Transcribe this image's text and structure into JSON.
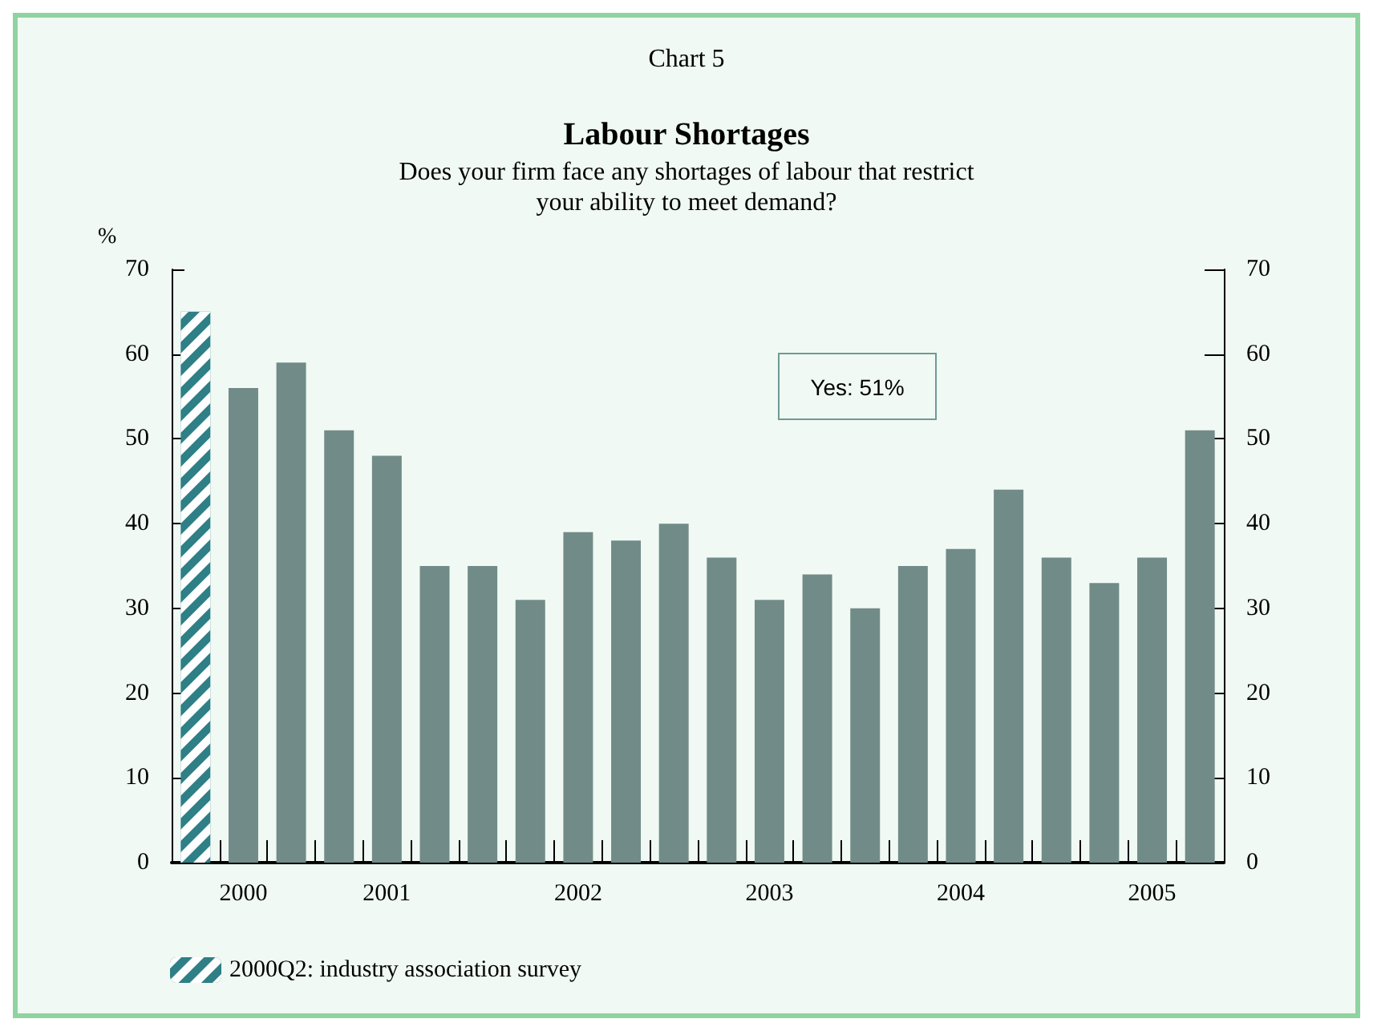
{
  "chart_data": {
    "type": "bar",
    "title": "Labour Shortages",
    "subtitle": "Does your firm face any shortages of labour that restrict\nyour ability to meet demand?",
    "ylabel": "%",
    "annotations": [
      "Chart 5",
      "Yes: 51%"
    ],
    "categories": [
      null,
      "2000",
      null,
      null,
      "2001",
      null,
      null,
      null,
      "2002",
      null,
      null,
      null,
      "2003",
      null,
      null,
      null,
      "2004",
      null,
      null,
      null,
      "2005",
      null
    ],
    "series": [
      {
        "name": "2000Q2: industry association survey",
        "color": "#2e7f86",
        "values": [
          65,
          null,
          null,
          null,
          null,
          null,
          null,
          null,
          null,
          null,
          null,
          null,
          null,
          null,
          null,
          null,
          null,
          null,
          null,
          null,
          null,
          null
        ]
      },
      {
        "color": "#718b88",
        "values": [
          null,
          56,
          59,
          51,
          48,
          35,
          35,
          31,
          39,
          38,
          40,
          36,
          31,
          34,
          30,
          35,
          37,
          44,
          36,
          33,
          36,
          51
        ]
      }
    ],
    "ylim": [
      0,
      70
    ],
    "yticks": [
      0,
      10,
      20,
      30,
      40,
      50,
      60,
      70
    ],
    "y2lim": [
      0,
      70
    ],
    "y2ticks": [
      0,
      10,
      20,
      30,
      40,
      50,
      60,
      70
    ],
    "grid": false,
    "legend": "bottom left"
  }
}
